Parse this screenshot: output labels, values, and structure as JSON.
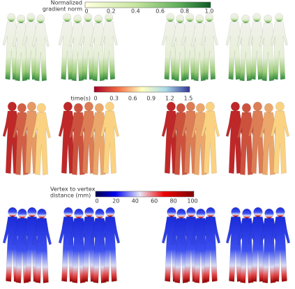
{
  "colorbars": [
    {
      "label": [
        "Normalized",
        "gradient norm"
      ],
      "ticks": [
        "0",
        "0.2",
        "0.4",
        "0.6",
        "0.8",
        "1.0"
      ]
    },
    {
      "label": [
        "time(s)"
      ],
      "ticks": [
        "0",
        "0.3",
        "0.6",
        "0.9",
        "1.2",
        "1.5"
      ]
    },
    {
      "label": [
        "Vertex to vertex",
        "distance (mm)"
      ],
      "ticks": [
        "0",
        "20",
        "40",
        "60",
        "80",
        "100"
      ]
    }
  ]
}
